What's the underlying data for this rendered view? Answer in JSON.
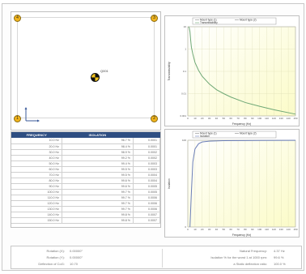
{
  "plan_view": {
    "corners": [
      "4",
      "3",
      "1",
      "2"
    ],
    "node_label": "Q001"
  },
  "table": {
    "headers": [
      "FREQUENCY",
      "ISOLATION",
      ""
    ],
    "rows": [
      [
        "10.0 Hz",
        "96.7 %",
        "0.0001"
      ],
      [
        "20.0 Hz",
        "98.4 %",
        "0.0001"
      ],
      [
        "30.0 Hz",
        "98.9 %",
        "0.0002"
      ],
      [
        "40.0 Hz",
        "99.2 %",
        "0.0002"
      ],
      [
        "50.0 Hz",
        "99.4 %",
        "0.0003"
      ],
      [
        "60.0 Hz",
        "99.5 %",
        "0.0003"
      ],
      [
        "70.0 Hz",
        "99.5 %",
        "0.0004"
      ],
      [
        "80.0 Hz",
        "99.6 %",
        "0.0004"
      ],
      [
        "90.0 Hz",
        "99.6 %",
        "0.0005"
      ],
      [
        "100.0 Hz",
        "99.7 %",
        "0.0005"
      ],
      [
        "110.0 Hz",
        "99.7 %",
        "0.0006"
      ],
      [
        "120.0 Hz",
        "99.7 %",
        "0.0006"
      ],
      [
        "130.0 Hz",
        "99.7 %",
        "0.0006"
      ],
      [
        "140.0 Hz",
        "99.8 %",
        "0.0007"
      ],
      [
        "150.0 Hz",
        "99.8 %",
        "0.0007"
      ]
    ]
  },
  "chart_data": [
    {
      "type": "line",
      "title": "",
      "legend": [
        "Mount type (1)",
        "Mount type (2)",
        "Transmissibility"
      ],
      "legend_placement": "top",
      "xlabel": "Frequency (Hz)",
      "ylabel": "Transmissibility",
      "x_ticks": [
        "0",
        "10",
        "20",
        "30",
        "40",
        "50",
        "60",
        "70",
        "80",
        "90",
        "100",
        "110",
        "120",
        "130",
        "140",
        "150"
      ],
      "y_ticks": [
        "10",
        "1",
        "0.1",
        "0.01",
        "0.001"
      ],
      "y_scale": "log",
      "ylim": [
        0.001,
        10
      ],
      "xlim": [
        0,
        150
      ],
      "x": [
        1,
        2,
        3,
        4,
        5,
        7,
        10,
        15,
        20,
        30,
        40,
        50,
        60,
        80,
        100,
        120,
        150
      ],
      "values": [
        10,
        9,
        6,
        2.5,
        1.2,
        0.6,
        0.25,
        0.11,
        0.06,
        0.027,
        0.015,
        0.01,
        0.007,
        0.004,
        0.0027,
        0.0019,
        0.0012
      ],
      "grid": true,
      "background": "#fbfbc8",
      "line_color": "#6fa876"
    },
    {
      "type": "line",
      "title": "",
      "legend": [
        "Mount type (1)",
        "Mount type (2)",
        "Isolation"
      ],
      "legend_placement": "top",
      "xlabel": "Frequency (Hz)",
      "ylabel": "Isolation",
      "x_ticks": [
        "0",
        "10",
        "20",
        "30",
        "40",
        "50",
        "60",
        "70",
        "80",
        "90",
        "100",
        "110",
        "120",
        "130",
        "140",
        "150"
      ],
      "y_ticks": [
        "100",
        "0"
      ],
      "ylim": [
        0,
        100
      ],
      "xlim": [
        0,
        150
      ],
      "x": [
        3,
        5,
        7,
        10,
        15,
        20,
        30,
        50,
        80,
        100,
        150
      ],
      "values": [
        0,
        40,
        75,
        90,
        96,
        98,
        99,
        99.5,
        99.7,
        99.8,
        99.9
      ],
      "grid": true,
      "background": "#fbfbc8",
      "line_color": "#6c7fb8"
    }
  ],
  "summary": {
    "left": [
      {
        "label": "Rotation (X):",
        "value": "0.00000°"
      },
      {
        "label": "Rotation (Y):",
        "value": "0.00000°"
      },
      {
        "label": "Deflection of CoG:",
        "value": "10.70"
      }
    ],
    "right": [
      {
        "label": "Natural Frequency:",
        "value": "4.37 Hz"
      },
      {
        "label": "Isolation % for the worst 1 at 1000 rpm:",
        "value": "99.6 %"
      },
      {
        "label": "a Static deflection ratio:",
        "value": "100.0 %"
      }
    ]
  },
  "colors": {
    "table_header": "#2e4e82",
    "corner_marker": "#f2b51c",
    "chart_bg": "#fbfbc8"
  }
}
